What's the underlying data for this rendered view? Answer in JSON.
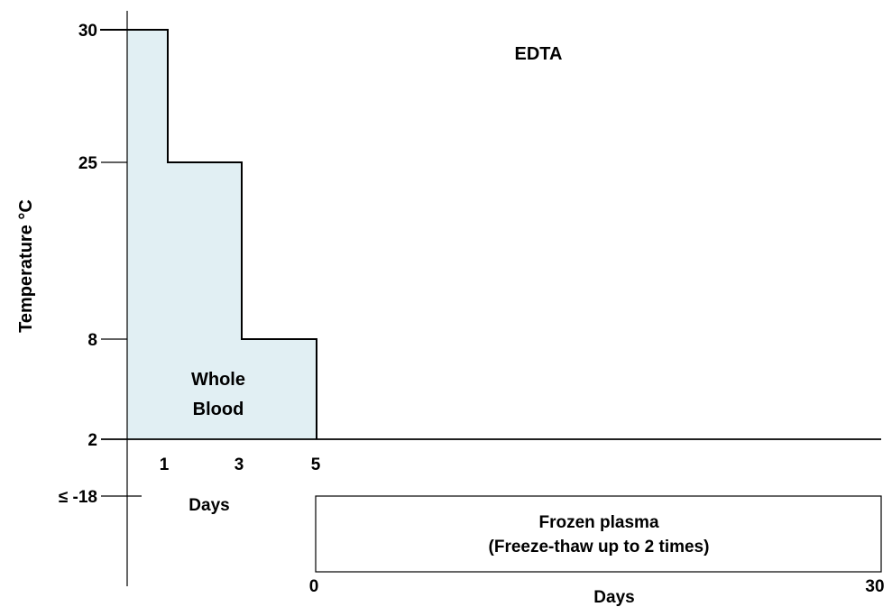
{
  "chart_data": {
    "type": "area",
    "title": "EDTA",
    "ylabel": "Temperature °C",
    "y_ticks": [
      {
        "label": "30",
        "value": 30
      },
      {
        "label": "25",
        "value": 25
      },
      {
        "label": "8",
        "value": 8
      },
      {
        "label": "2",
        "value": 2
      },
      {
        "label": "≤ -18",
        "value": -18
      }
    ],
    "whole_blood": {
      "label_line1": "Whole",
      "label_line2": "Blood",
      "fill_color": "#e1eff3",
      "xlabel": "Days",
      "x_ticks": [
        "1",
        "3",
        "5"
      ],
      "steps": [
        {
          "from_day": 0,
          "to_day": 1,
          "max_temp_c": 30
        },
        {
          "from_day": 1,
          "to_day": 3,
          "max_temp_c": 25
        },
        {
          "from_day": 3,
          "to_day": 5,
          "max_temp_c": 8
        }
      ],
      "min_temp_c": 2
    },
    "frozen_plasma": {
      "label_line1": "Frozen plasma",
      "label_line2": "(Freeze-thaw up to 2 times)",
      "xlabel": "Days",
      "x_start_label": "0",
      "x_end_label": "30",
      "from_day": 0,
      "to_day": 30,
      "temp_c": -18
    },
    "grid": false
  }
}
